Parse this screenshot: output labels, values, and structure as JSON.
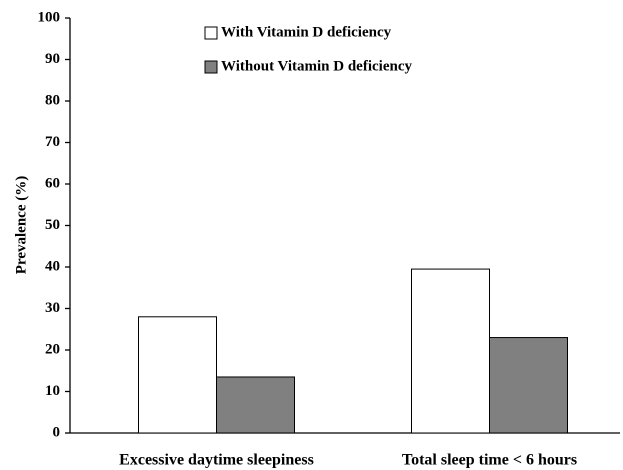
{
  "chart_data": {
    "type": "bar",
    "categories": [
      "Excessive daytime sleepiness",
      "Total sleep time < 6 hours"
    ],
    "series": [
      {
        "name": "With Vitamin D deficiency",
        "color": "#ffffff",
        "values": [
          28,
          39.5
        ]
      },
      {
        "name": "Without Vitamin D deficiency",
        "color": "#808080",
        "values": [
          13.5,
          23
        ]
      }
    ],
    "y_label": "Prevalence (%)",
    "ylim": [
      0,
      100
    ],
    "yticks": [
      0,
      10,
      20,
      30,
      40,
      50,
      60,
      70,
      80,
      90,
      100
    ],
    "grid": false,
    "legend": "top"
  }
}
